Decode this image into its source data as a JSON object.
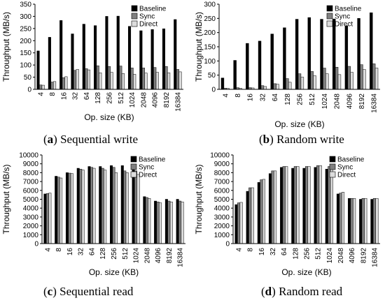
{
  "chart_data": [
    {
      "id": "a",
      "type": "bar",
      "caption_letter": "a",
      "caption_text": "Sequential write",
      "xlabel": "Op. size (KB)",
      "ylabel": "Throughput (MB/s)",
      "ylim": [
        0,
        350
      ],
      "yticks": [
        0,
        50,
        100,
        150,
        200,
        250,
        300,
        350
      ],
      "grid": false,
      "legend": "top-right",
      "categories": [
        "4",
        "8",
        "16",
        "32",
        "64",
        "128",
        "256",
        "512",
        "1024",
        "2048",
        "4096",
        "8192",
        "16384"
      ],
      "series": [
        {
          "name": "Baseline",
          "color": "#000000",
          "values": [
            158,
            214,
            283,
            228,
            268,
            262,
            300,
            301,
            259,
            241,
            246,
            249,
            287
          ]
        },
        {
          "name": "Sync",
          "color": "#808080",
          "values": [
            18,
            30,
            48,
            78,
            85,
            97,
            94,
            96,
            88,
            88,
            90,
            94,
            82
          ]
        },
        {
          "name": "Direct",
          "color": "#dcdcdc",
          "values": [
            17,
            32,
            52,
            82,
            80,
            68,
            70,
            65,
            62,
            67,
            70,
            68,
            72
          ]
        }
      ]
    },
    {
      "id": "b",
      "type": "bar",
      "caption_letter": "b",
      "caption_text": "Random write",
      "xlabel": "Op. size (KB)",
      "ylabel": "Throughput (MB/s)",
      "ylim": [
        0,
        300
      ],
      "yticks": [
        0,
        50,
        100,
        150,
        200,
        250,
        300
      ],
      "grid": false,
      "legend": "top-right",
      "categories": [
        "4",
        "8",
        "16",
        "32",
        "64",
        "128",
        "256",
        "512",
        "1024",
        "2048",
        "4096",
        "8192",
        "16384"
      ],
      "series": [
        {
          "name": "Baseline",
          "color": "#000000",
          "values": [
            40,
            102,
            162,
            170,
            195,
            217,
            247,
            253,
            247,
            248,
            224,
            250,
            270
          ]
        },
        {
          "name": "Sync",
          "color": "#808080",
          "values": [
            4,
            6,
            6,
            13,
            20,
            38,
            55,
            63,
            75,
            78,
            81,
            87,
            90
          ]
        },
        {
          "name": "Direct",
          "color": "#dcdcdc",
          "values": [
            3,
            4,
            5,
            10,
            18,
            25,
            43,
            48,
            55,
            52,
            60,
            70,
            75
          ]
        }
      ]
    },
    {
      "id": "c",
      "type": "bar",
      "caption_letter": "c",
      "caption_text": "Sequential read",
      "xlabel": "Op. size (KB)",
      "ylabel": "Throughput (MB/s)",
      "ylim": [
        0,
        10000
      ],
      "yticks": [
        0,
        1000,
        2000,
        3000,
        4000,
        5000,
        6000,
        7000,
        8000,
        9000,
        10000
      ],
      "grid": false,
      "legend": "top-right",
      "categories": [
        "4",
        "8",
        "16",
        "32",
        "64",
        "128",
        "256",
        "512",
        "1024",
        "2048",
        "4096",
        "8192",
        "16384"
      ],
      "series": [
        {
          "name": "Baseline",
          "color": "#000000",
          "values": [
            5600,
            7600,
            8000,
            8500,
            8700,
            8700,
            8800,
            8800,
            8600,
            5300,
            4800,
            5000,
            5000
          ]
        },
        {
          "name": "Sync",
          "color": "#808080",
          "values": [
            5650,
            7500,
            7950,
            8400,
            8600,
            8500,
            8600,
            8200,
            8200,
            5200,
            4700,
            4800,
            4800
          ]
        },
        {
          "name": "Direct",
          "color": "#dcdcdc",
          "values": [
            5700,
            7400,
            7900,
            8300,
            8500,
            8300,
            8000,
            8000,
            7800,
            5100,
            4600,
            4700,
            4700
          ]
        }
      ]
    },
    {
      "id": "d",
      "type": "bar",
      "caption_letter": "d",
      "caption_text": "Random read",
      "xlabel": "Op. size (KB)",
      "ylabel": "Throughput (MB/s)",
      "ylim": [
        0,
        10000
      ],
      "yticks": [
        0,
        1000,
        2000,
        3000,
        4000,
        5000,
        6000,
        7000,
        8000,
        9000,
        10000
      ],
      "grid": false,
      "legend": "top-right",
      "categories": [
        "4",
        "8",
        "16",
        "32",
        "64",
        "128",
        "256",
        "512",
        "1024",
        "2048",
        "4096",
        "8192",
        "16384"
      ],
      "series": [
        {
          "name": "Baseline",
          "color": "#000000",
          "values": [
            4400,
            5900,
            6900,
            7900,
            8600,
            8500,
            8500,
            8600,
            8400,
            5600,
            5100,
            5000,
            5000
          ]
        },
        {
          "name": "Sync",
          "color": "#808080",
          "values": [
            4600,
            6300,
            7200,
            8200,
            8700,
            8700,
            8700,
            8800,
            8700,
            5700,
            5100,
            5100,
            5100
          ]
        },
        {
          "name": "Direct",
          "color": "#dcdcdc",
          "values": [
            4650,
            6300,
            7250,
            8200,
            8700,
            8700,
            8700,
            8800,
            8700,
            5800,
            5100,
            5100,
            5100
          ]
        }
      ]
    }
  ]
}
